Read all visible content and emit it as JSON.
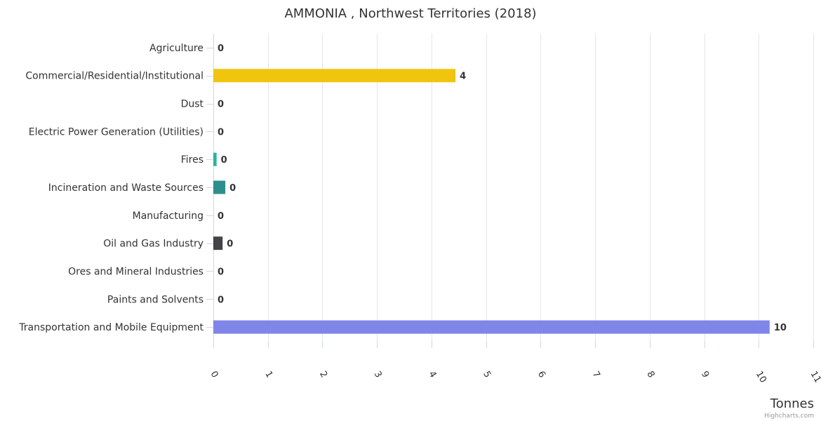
{
  "chart_data": {
    "type": "bar",
    "orientation": "horizontal",
    "title": "AMMONIA , Northwest Territories (2018)",
    "xlabel": "Tonnes",
    "ylabel": "",
    "xlim": [
      0,
      11
    ],
    "ticks": [
      "0",
      "1",
      "2",
      "3",
      "4",
      "5",
      "6",
      "7",
      "8",
      "9",
      "10",
      "11"
    ],
    "grid": true,
    "legend": "none",
    "categories": [
      "Agriculture",
      "Commercial/Residential/Institutional",
      "Dust",
      "Electric Power Generation (Utilities)",
      "Fires",
      "Incineration and Waste Sources",
      "Manufacturing",
      "Oil and Gas Industry",
      "Ores and Mineral Industries",
      "Paints and Solvents",
      "Transportation and Mobile Equipment"
    ],
    "values": [
      0,
      4.44,
      0,
      0,
      0.06,
      0.22,
      0,
      0.17,
      0,
      0,
      10.2
    ],
    "data_labels": [
      "0",
      "4",
      "0",
      "0",
      "0",
      "0",
      "0",
      "0",
      "0",
      "0",
      "10"
    ],
    "colors": [
      "#7cb5ec",
      "#f1c40f",
      "#7cb5ec",
      "#7cb5ec",
      "#2ab3a0",
      "#2e8f8a",
      "#7cb5ec",
      "#434348",
      "#7cb5ec",
      "#7cb5ec",
      "#8085e9"
    ]
  },
  "credits": "Highcharts.com"
}
